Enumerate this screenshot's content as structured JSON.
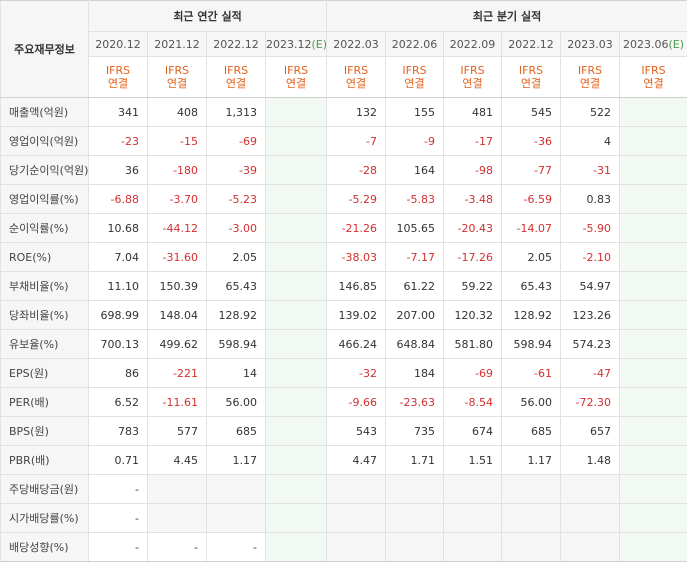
{
  "header": {
    "label": "주요재무정보",
    "annual_group": "최근 연간 실적",
    "quarter_group": "최근 분기 실적",
    "annual_periods": [
      {
        "period": "2020.12",
        "est": ""
      },
      {
        "period": "2021.12",
        "est": ""
      },
      {
        "period": "2022.12",
        "est": ""
      },
      {
        "period": "2023.12",
        "est": "(E)"
      }
    ],
    "quarter_periods": [
      {
        "period": "2022.03",
        "est": ""
      },
      {
        "period": "2022.06",
        "est": ""
      },
      {
        "period": "2022.09",
        "est": ""
      },
      {
        "period": "2022.12",
        "est": ""
      },
      {
        "period": "2023.03",
        "est": ""
      },
      {
        "period": "2023.06",
        "est": "(E)"
      }
    ],
    "ifrs_top": "IFRS",
    "ifrs_bottom": "연결"
  },
  "rows": [
    {
      "label": "매출액(억원)",
      "annual": [
        "341",
        "408",
        "1,313",
        ""
      ],
      "quarter": [
        "132",
        "155",
        "481",
        "545",
        "522",
        ""
      ]
    },
    {
      "label": "영업이익(억원)",
      "annual": [
        "-23",
        "-15",
        "-69",
        ""
      ],
      "quarter": [
        "-7",
        "-9",
        "-17",
        "-36",
        "4",
        ""
      ]
    },
    {
      "label": "당기순이익(억원)",
      "annual": [
        "36",
        "-180",
        "-39",
        ""
      ],
      "quarter": [
        "-28",
        "164",
        "-98",
        "-77",
        "-31",
        ""
      ]
    },
    {
      "label": "영업이익률(%)",
      "annual": [
        "-6.88",
        "-3.70",
        "-5.23",
        ""
      ],
      "quarter": [
        "-5.29",
        "-5.83",
        "-3.48",
        "-6.59",
        "0.83",
        ""
      ]
    },
    {
      "label": "순이익률(%)",
      "annual": [
        "10.68",
        "-44.12",
        "-3.00",
        ""
      ],
      "quarter": [
        "-21.26",
        "105.65",
        "-20.43",
        "-14.07",
        "-5.90",
        ""
      ]
    },
    {
      "label": "ROE(%)",
      "annual": [
        "7.04",
        "-31.60",
        "2.05",
        ""
      ],
      "quarter": [
        "-38.03",
        "-7.17",
        "-17.26",
        "2.05",
        "-2.10",
        ""
      ]
    },
    {
      "label": "부채비율(%)",
      "annual": [
        "11.10",
        "150.39",
        "65.43",
        ""
      ],
      "quarter": [
        "146.85",
        "61.22",
        "59.22",
        "65.43",
        "54.97",
        ""
      ]
    },
    {
      "label": "당좌비율(%)",
      "annual": [
        "698.99",
        "148.04",
        "128.92",
        ""
      ],
      "quarter": [
        "139.02",
        "207.00",
        "120.32",
        "128.92",
        "123.26",
        ""
      ]
    },
    {
      "label": "유보율(%)",
      "annual": [
        "700.13",
        "499.62",
        "598.94",
        ""
      ],
      "quarter": [
        "466.24",
        "648.84",
        "581.80",
        "598.94",
        "574.23",
        ""
      ]
    },
    {
      "label": "EPS(원)",
      "annual": [
        "86",
        "-221",
        "14",
        ""
      ],
      "quarter": [
        "-32",
        "184",
        "-69",
        "-61",
        "-47",
        ""
      ]
    },
    {
      "label": "PER(배)",
      "annual": [
        "6.52",
        "-11.61",
        "56.00",
        ""
      ],
      "quarter": [
        "-9.66",
        "-23.63",
        "-8.54",
        "56.00",
        "-72.30",
        ""
      ]
    },
    {
      "label": "BPS(원)",
      "annual": [
        "783",
        "577",
        "685",
        ""
      ],
      "quarter": [
        "543",
        "735",
        "674",
        "685",
        "657",
        ""
      ]
    },
    {
      "label": "PBR(배)",
      "annual": [
        "0.71",
        "4.45",
        "1.17",
        ""
      ],
      "quarter": [
        "4.47",
        "1.71",
        "1.51",
        "1.17",
        "1.48",
        ""
      ]
    },
    {
      "label": "주당배당금(원)",
      "annual": [
        "-",
        "",
        "",
        ""
      ],
      "quarter": [
        "",
        "",
        "",
        "",
        "",
        ""
      ]
    },
    {
      "label": "시가배당률(%)",
      "annual": [
        "-",
        "",
        "",
        ""
      ],
      "quarter": [
        "",
        "",
        "",
        "",
        "",
        ""
      ]
    },
    {
      "label": "배당성향(%)",
      "annual": [
        "-",
        "-",
        "-",
        ""
      ],
      "quarter": [
        "",
        "",
        "",
        "",
        "",
        ""
      ]
    }
  ],
  "colors": {
    "negative": "#d3302f",
    "ifrs": "#e4611a",
    "estimate_bg": "#f2f8f2",
    "estimate_mark": "#4c9a4c",
    "header_bg": "#f6f6f6"
  }
}
